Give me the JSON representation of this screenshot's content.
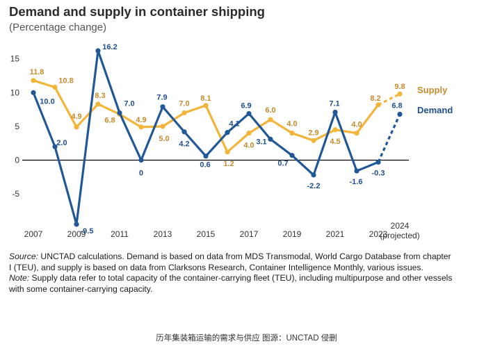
{
  "title": "Demand and supply in container shipping",
  "subtitle": "(Percentage change)",
  "chart_data": {
    "type": "line",
    "title": "Demand and supply in container shipping",
    "subtitle": "(Percentage change)",
    "x": [
      "2007",
      "2008",
      "2009",
      "2010",
      "2011",
      "2012",
      "2013",
      "2014",
      "2015",
      "2016",
      "2017",
      "2018",
      "2019",
      "2020",
      "2021",
      "2022",
      "2023",
      "2024 (projected)"
    ],
    "x_tick_labels": [
      "2007",
      "2009",
      "2011",
      "2013",
      "2015",
      "2017",
      "2019",
      "2021",
      "2023",
      "2024",
      "(projected)"
    ],
    "y_ticks": [
      15,
      10,
      5,
      0,
      -5
    ],
    "ylim": [
      -10,
      17
    ],
    "series": [
      {
        "name": "Supply",
        "color": "#f2b53a",
        "label_color": "#c68a2c",
        "values": [
          11.8,
          10.8,
          4.9,
          8.3,
          6.8,
          4.9,
          5.0,
          7.0,
          8.1,
          1.2,
          4.0,
          6.0,
          4.0,
          2.9,
          4.5,
          4.0,
          8.2,
          9.8
        ],
        "labels": [
          "11.8",
          "10.8",
          "4.9",
          "8.3",
          "6.8",
          "4.9",
          "5.0",
          "7.0",
          "8.1",
          "1.2",
          "4.0",
          "6.0",
          "4.0",
          "2.9",
          "4.5",
          "4.0",
          "8.2",
          "9.8"
        ]
      },
      {
        "name": "Demand",
        "color": "#1f5797",
        "label_color": "#1f4f8c",
        "values": [
          10.0,
          2.0,
          -9.5,
          16.2,
          7.0,
          0.0,
          7.9,
          4.2,
          0.6,
          4.1,
          6.9,
          3.1,
          0.7,
          -2.2,
          7.1,
          -1.6,
          -0.3,
          6.8
        ],
        "labels": [
          "10.0",
          "2.0",
          "-9.5",
          "16.2",
          "7.0",
          "0",
          "7.9",
          "4.2",
          "0.6",
          "4.1",
          "6.9",
          "3.1",
          "0.7",
          "-2.2",
          "7.1",
          "-1.6",
          "-0.3",
          "6.8"
        ]
      }
    ],
    "projected_last_segment": "dashed",
    "grid": false,
    "legend": "right"
  },
  "notes": {
    "source_label": "Source:",
    "source_text": " UNCTAD calculations. Demand is based on data from MDS Transmodal, World Cargo Database from chapter I (TEU), and supply is based on data from Clarksons Research, Container Intelligence Monthly, various issues.",
    "note_label": "Note:",
    "note_text": " Supply data refer to total capacity of the container-carrying fleet (TEU), including multipurpose and other vessels with some container-carrying capacity."
  },
  "caption": "历年集装箱运输的需求与供应 图源：UNCTAD 侵删"
}
